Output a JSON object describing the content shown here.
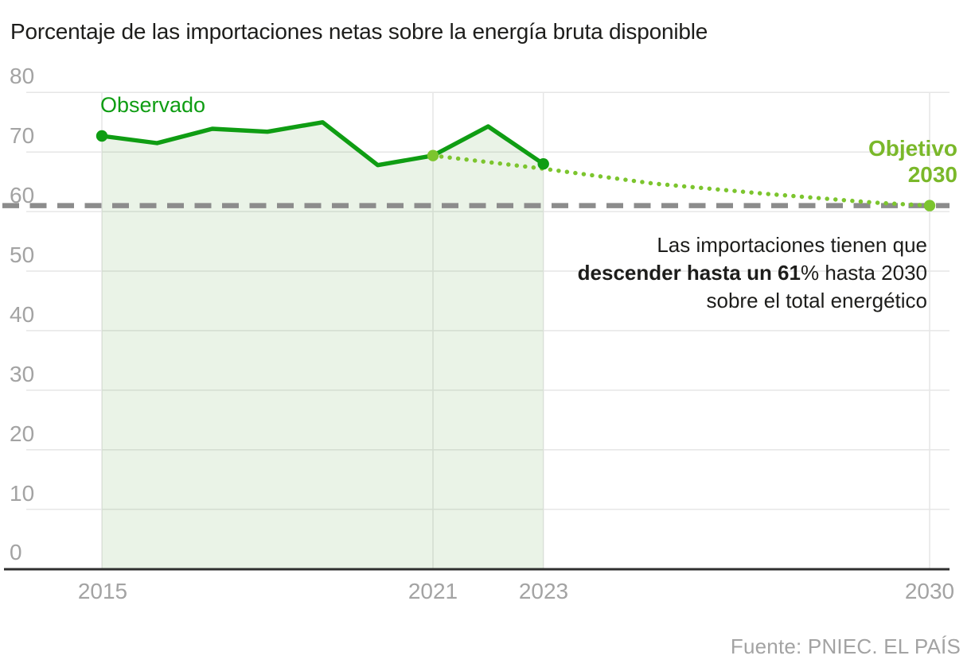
{
  "title": "Porcentaje de las importaciones netas sobre la energía bruta disponible",
  "series_labels": {
    "observed": "Observado",
    "objective": [
      "Objetivo",
      "2030"
    ]
  },
  "annotation": {
    "line1": "Las importaciones tienen que",
    "line2_bold": "descender hasta un 61",
    "line2_rest": "% hasta 2030",
    "line3": "sobre el total energético"
  },
  "source": "Fuente: PNIEC. EL PAÍS",
  "colors": {
    "observed_green": "#0f9d13",
    "objective_green": "#7cc52e",
    "objective_text_green": "#7ab82a",
    "target_dash_gray": "#8c8c8c",
    "grid_gray": "#e6e6e6",
    "axis_dark": "#2f2f2f",
    "tick_gray": "#a3a3a3",
    "text_dark": "#1d1d1b",
    "area_fill": "rgba(90,160,70,0.13)"
  },
  "chart_data": {
    "type": "line",
    "title": "Porcentaje de las importaciones netas sobre la energía bruta disponible",
    "xlabel": "",
    "ylabel": "",
    "x_domain": [
      2015,
      2030
    ],
    "y_domain": [
      0,
      80
    ],
    "grid": true,
    "x_ticks": [
      "2015",
      "2021",
      "2023",
      "2030"
    ],
    "x_tick_years": [
      2015,
      2021,
      2023,
      2030
    ],
    "y_ticks": [
      "80",
      "70",
      "60",
      "50",
      "40",
      "30",
      "20",
      "10",
      "0"
    ],
    "y_tick_values": [
      80,
      70,
      60,
      50,
      40,
      30,
      20,
      10,
      0
    ],
    "series": [
      {
        "name": "Observado",
        "style": "solid",
        "color_key": "observed_green",
        "points": [
          [
            2015,
            72.7
          ],
          [
            2016,
            71.5
          ],
          [
            2017,
            73.9
          ],
          [
            2018,
            73.4
          ],
          [
            2019,
            75.0
          ],
          [
            2020,
            67.8
          ],
          [
            2021,
            69.4
          ],
          [
            2022,
            74.3
          ],
          [
            2023,
            68.0
          ]
        ]
      },
      {
        "name": "Objetivo 2030",
        "style": "dotted",
        "color_key": "objective_green",
        "points": [
          [
            2021,
            69.4
          ],
          [
            2023,
            67.2
          ],
          [
            2025,
            64.7
          ],
          [
            2027,
            63.0
          ],
          [
            2029,
            61.5
          ],
          [
            2030,
            61.0
          ]
        ]
      }
    ],
    "target_line": {
      "value": 61,
      "style": "dashed",
      "color_key": "target_dash_gray"
    },
    "shaded_region": {
      "from": 2015,
      "to": 2023
    },
    "markers": [
      {
        "year": 2015,
        "value": 72.7,
        "tone": "dark"
      },
      {
        "year": 2021,
        "value": 69.4,
        "tone": "light"
      },
      {
        "year": 2023,
        "value": 68.0,
        "tone": "dark"
      },
      {
        "year": 2030,
        "value": 61.0,
        "tone": "light"
      }
    ]
  }
}
